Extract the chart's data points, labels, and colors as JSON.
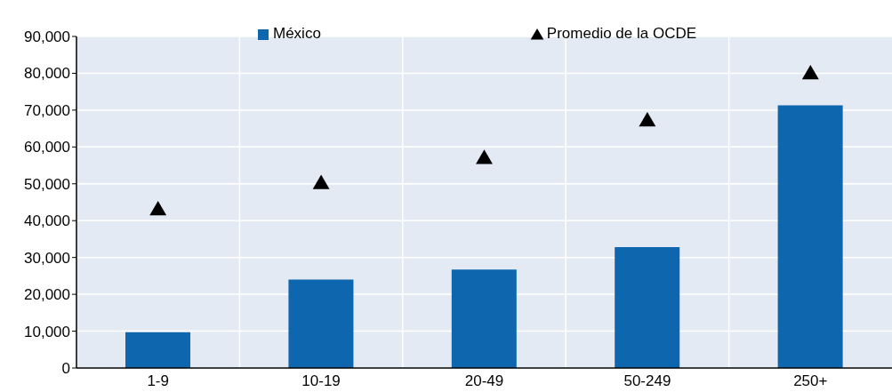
{
  "chart_data": {
    "type": "bar",
    "categories": [
      "1-9",
      "10-19",
      "20-49",
      "50-249",
      "250+"
    ],
    "series": [
      {
        "name": "México",
        "color": "#0e67ae",
        "values": [
          9700,
          24000,
          26700,
          32800,
          71300
        ]
      },
      {
        "name": "Promedio de la OCDE",
        "type": "scatter",
        "marker": "triangle",
        "color": "#000000",
        "values": [
          43200,
          50300,
          57100,
          67300,
          80100
        ]
      }
    ],
    "ylim": [
      0,
      90000
    ],
    "yticks": [
      0,
      {
        "value": 10000,
        "label": "10,000"
      },
      {
        "value": 20000,
        "label": "20,000"
      },
      {
        "value": 30000,
        "label": "30,000"
      },
      {
        "value": 40000,
        "label": "40,000"
      },
      {
        "value": 50000,
        "label": "50,000"
      },
      {
        "value": 60000,
        "label": "60,000"
      },
      {
        "value": 70000,
        "label": "70,000"
      },
      {
        "value": 80000,
        "label": "80,000"
      },
      {
        "value": 90000,
        "label": "90,000"
      }
    ],
    "grid": true,
    "legend": "top"
  }
}
